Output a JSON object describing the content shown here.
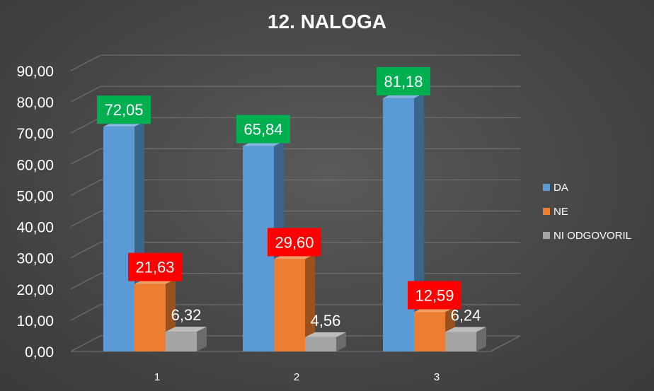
{
  "chart_data": {
    "type": "bar",
    "title": "12. NALOGA",
    "categories": [
      "1",
      "2",
      "3"
    ],
    "series": [
      {
        "name": "DA",
        "values": [
          72.05,
          65.84,
          81.18
        ],
        "color": "#5b9bd5",
        "label_bg": "#00b050"
      },
      {
        "name": "NE",
        "values": [
          21.63,
          29.6,
          12.59
        ],
        "color": "#ed7d31",
        "label_bg": "#ff0000"
      },
      {
        "name": "NI ODGOVORIL",
        "values": [
          6.32,
          4.56,
          6.24
        ],
        "color": "#a5a5a5",
        "label_bg": ""
      }
    ],
    "data_labels": [
      [
        "72,05",
        "65,84",
        "81,18"
      ],
      [
        "21,63",
        "29,60",
        "12,59"
      ],
      [
        "6,32",
        "4,56",
        "6,24"
      ]
    ],
    "y_ticks": [
      "0,00",
      "10,00",
      "20,00",
      "30,00",
      "40,00",
      "50,00",
      "60,00",
      "70,00",
      "80,00",
      "90,00"
    ],
    "ylim": [
      0,
      90
    ],
    "grid": true,
    "legend_position": "right",
    "style": "3d-clustered-column"
  }
}
